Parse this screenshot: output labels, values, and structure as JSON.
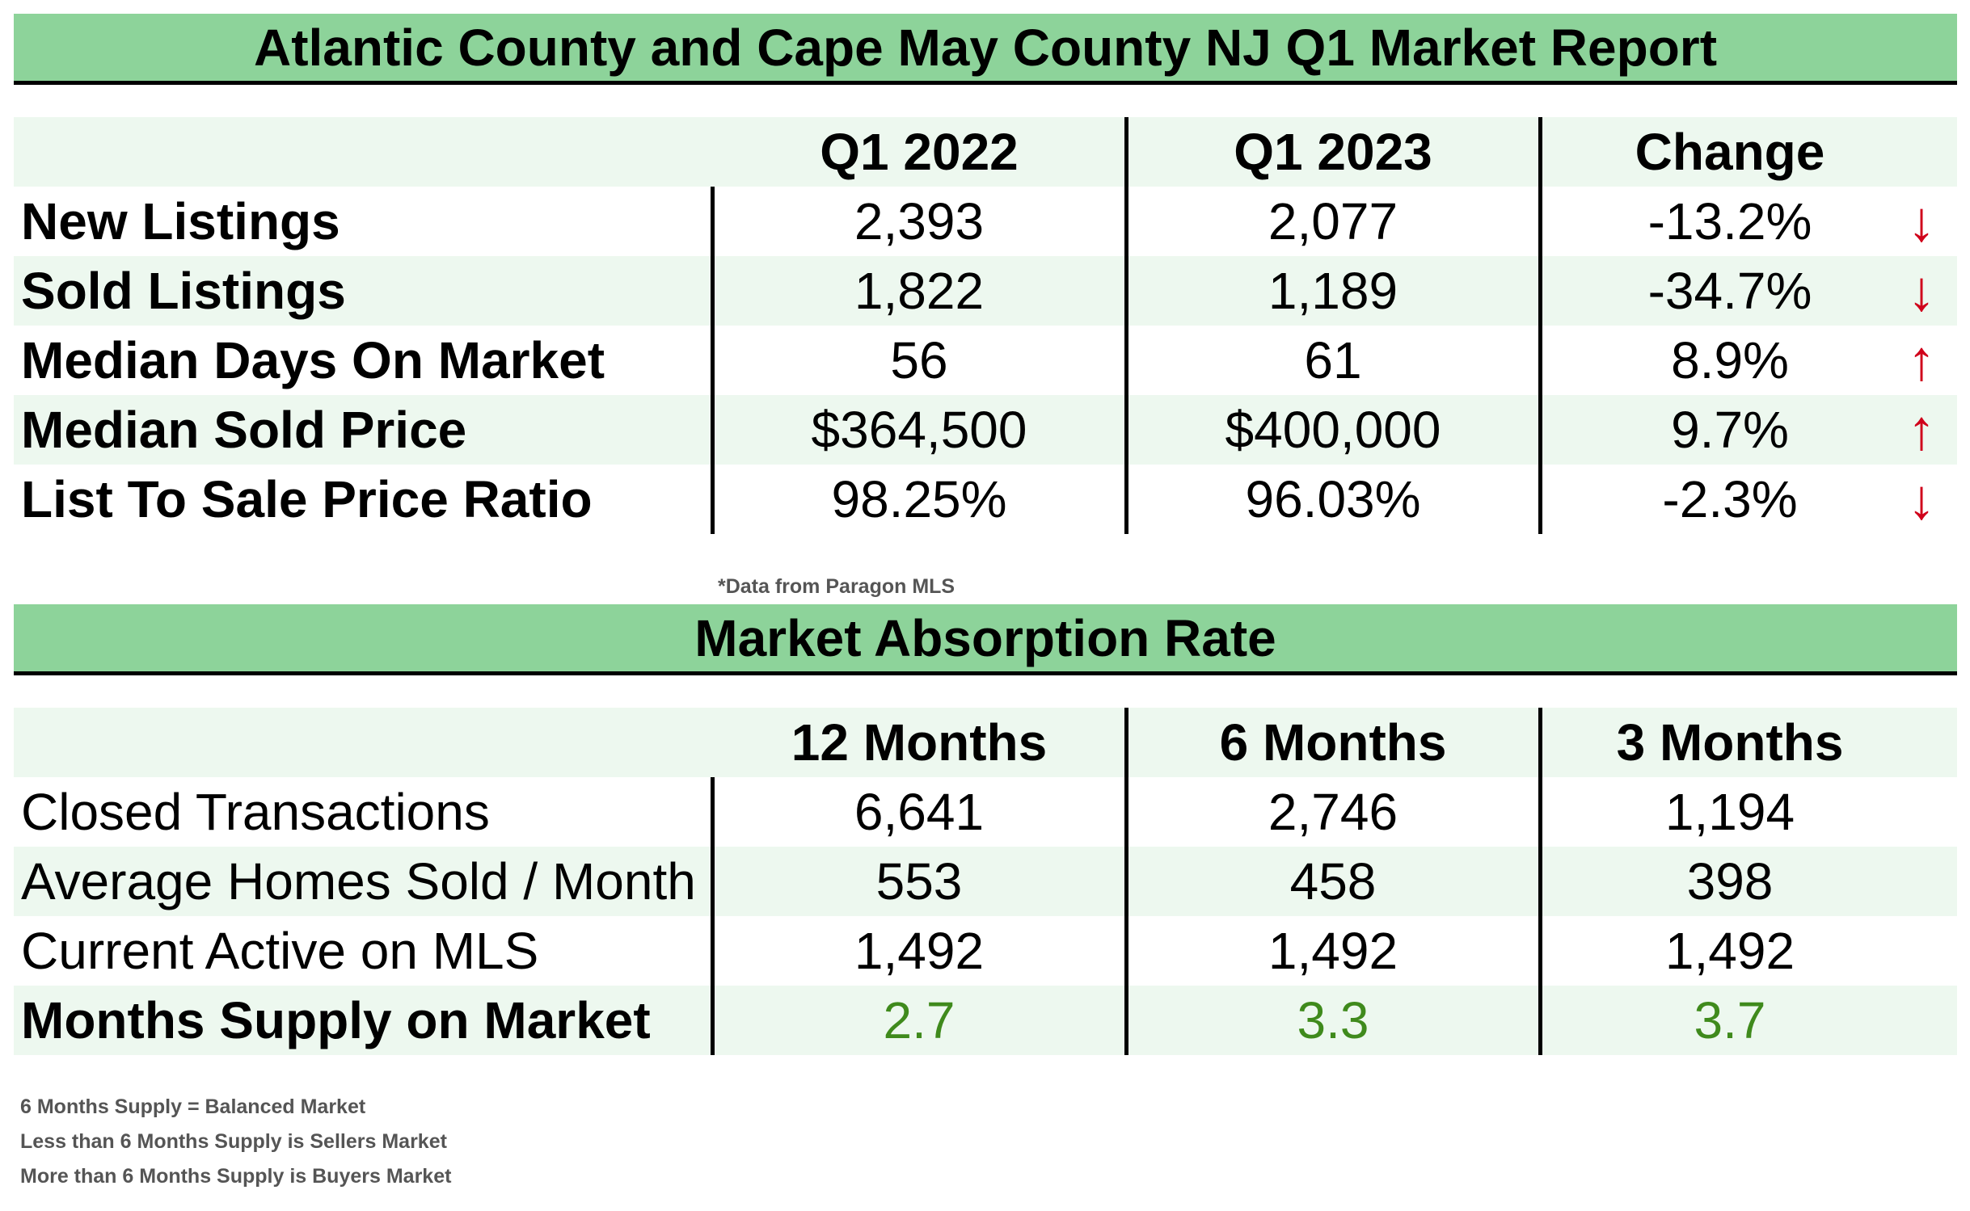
{
  "report": {
    "title": "Atlantic County and Cape May County NJ Q1 Market Report",
    "columns": [
      "Q1 2022",
      "Q1 2023",
      "Change"
    ],
    "rows": [
      {
        "label": "New Listings",
        "q1_2022": "2,393",
        "q1_2023": "2,077",
        "change": "-13.2%",
        "arrow": "↓",
        "direction": "down"
      },
      {
        "label": "Sold Listings",
        "q1_2022": "1,822",
        "q1_2023": "1,189",
        "change": "-34.7%",
        "arrow": "↓",
        "direction": "down"
      },
      {
        "label": "Median Days On Market",
        "q1_2022": "56",
        "q1_2023": "61",
        "change": "8.9%",
        "arrow": "↑",
        "direction": "up"
      },
      {
        "label": "Median Sold Price",
        "q1_2022": "$364,500",
        "q1_2023": "$400,000",
        "change": "9.7%",
        "arrow": "↑",
        "direction": "up"
      },
      {
        "label": "List To Sale Price Ratio",
        "q1_2022": "98.25%",
        "q1_2023": "96.03%",
        "change": "-2.3%",
        "arrow": "↓",
        "direction": "down"
      }
    ],
    "source_note": "*Data from Paragon MLS"
  },
  "absorption": {
    "title": "Market Absorption Rate",
    "columns": [
      "12 Months",
      "6 Months",
      "3 Months"
    ],
    "rows": [
      {
        "label": "Closed Transactions",
        "m12": "6,641",
        "m6": "2,746",
        "m3": "1,194"
      },
      {
        "label": "Average Homes Sold / Month",
        "m12": "553",
        "m6": "458",
        "m3": "398"
      },
      {
        "label": "Current Active on MLS",
        "m12": "1,492",
        "m6": "1,492",
        "m3": "1,492"
      },
      {
        "label": "Months Supply on Market",
        "m12": "2.7",
        "m6": "3.3",
        "m3": "3.7"
      }
    ],
    "notes": [
      "6 Months Supply = Balanced Market",
      "Less than 6 Months Supply is Sellers Market",
      "More than 6 Months Supply is Buyers Market"
    ]
  },
  "colors": {
    "banner_green": "#8dd39a",
    "row_shade": "#edf8ef",
    "arrow_red": "#d0021b",
    "supply_green": "#3f8a1c",
    "note_gray": "#555555"
  }
}
